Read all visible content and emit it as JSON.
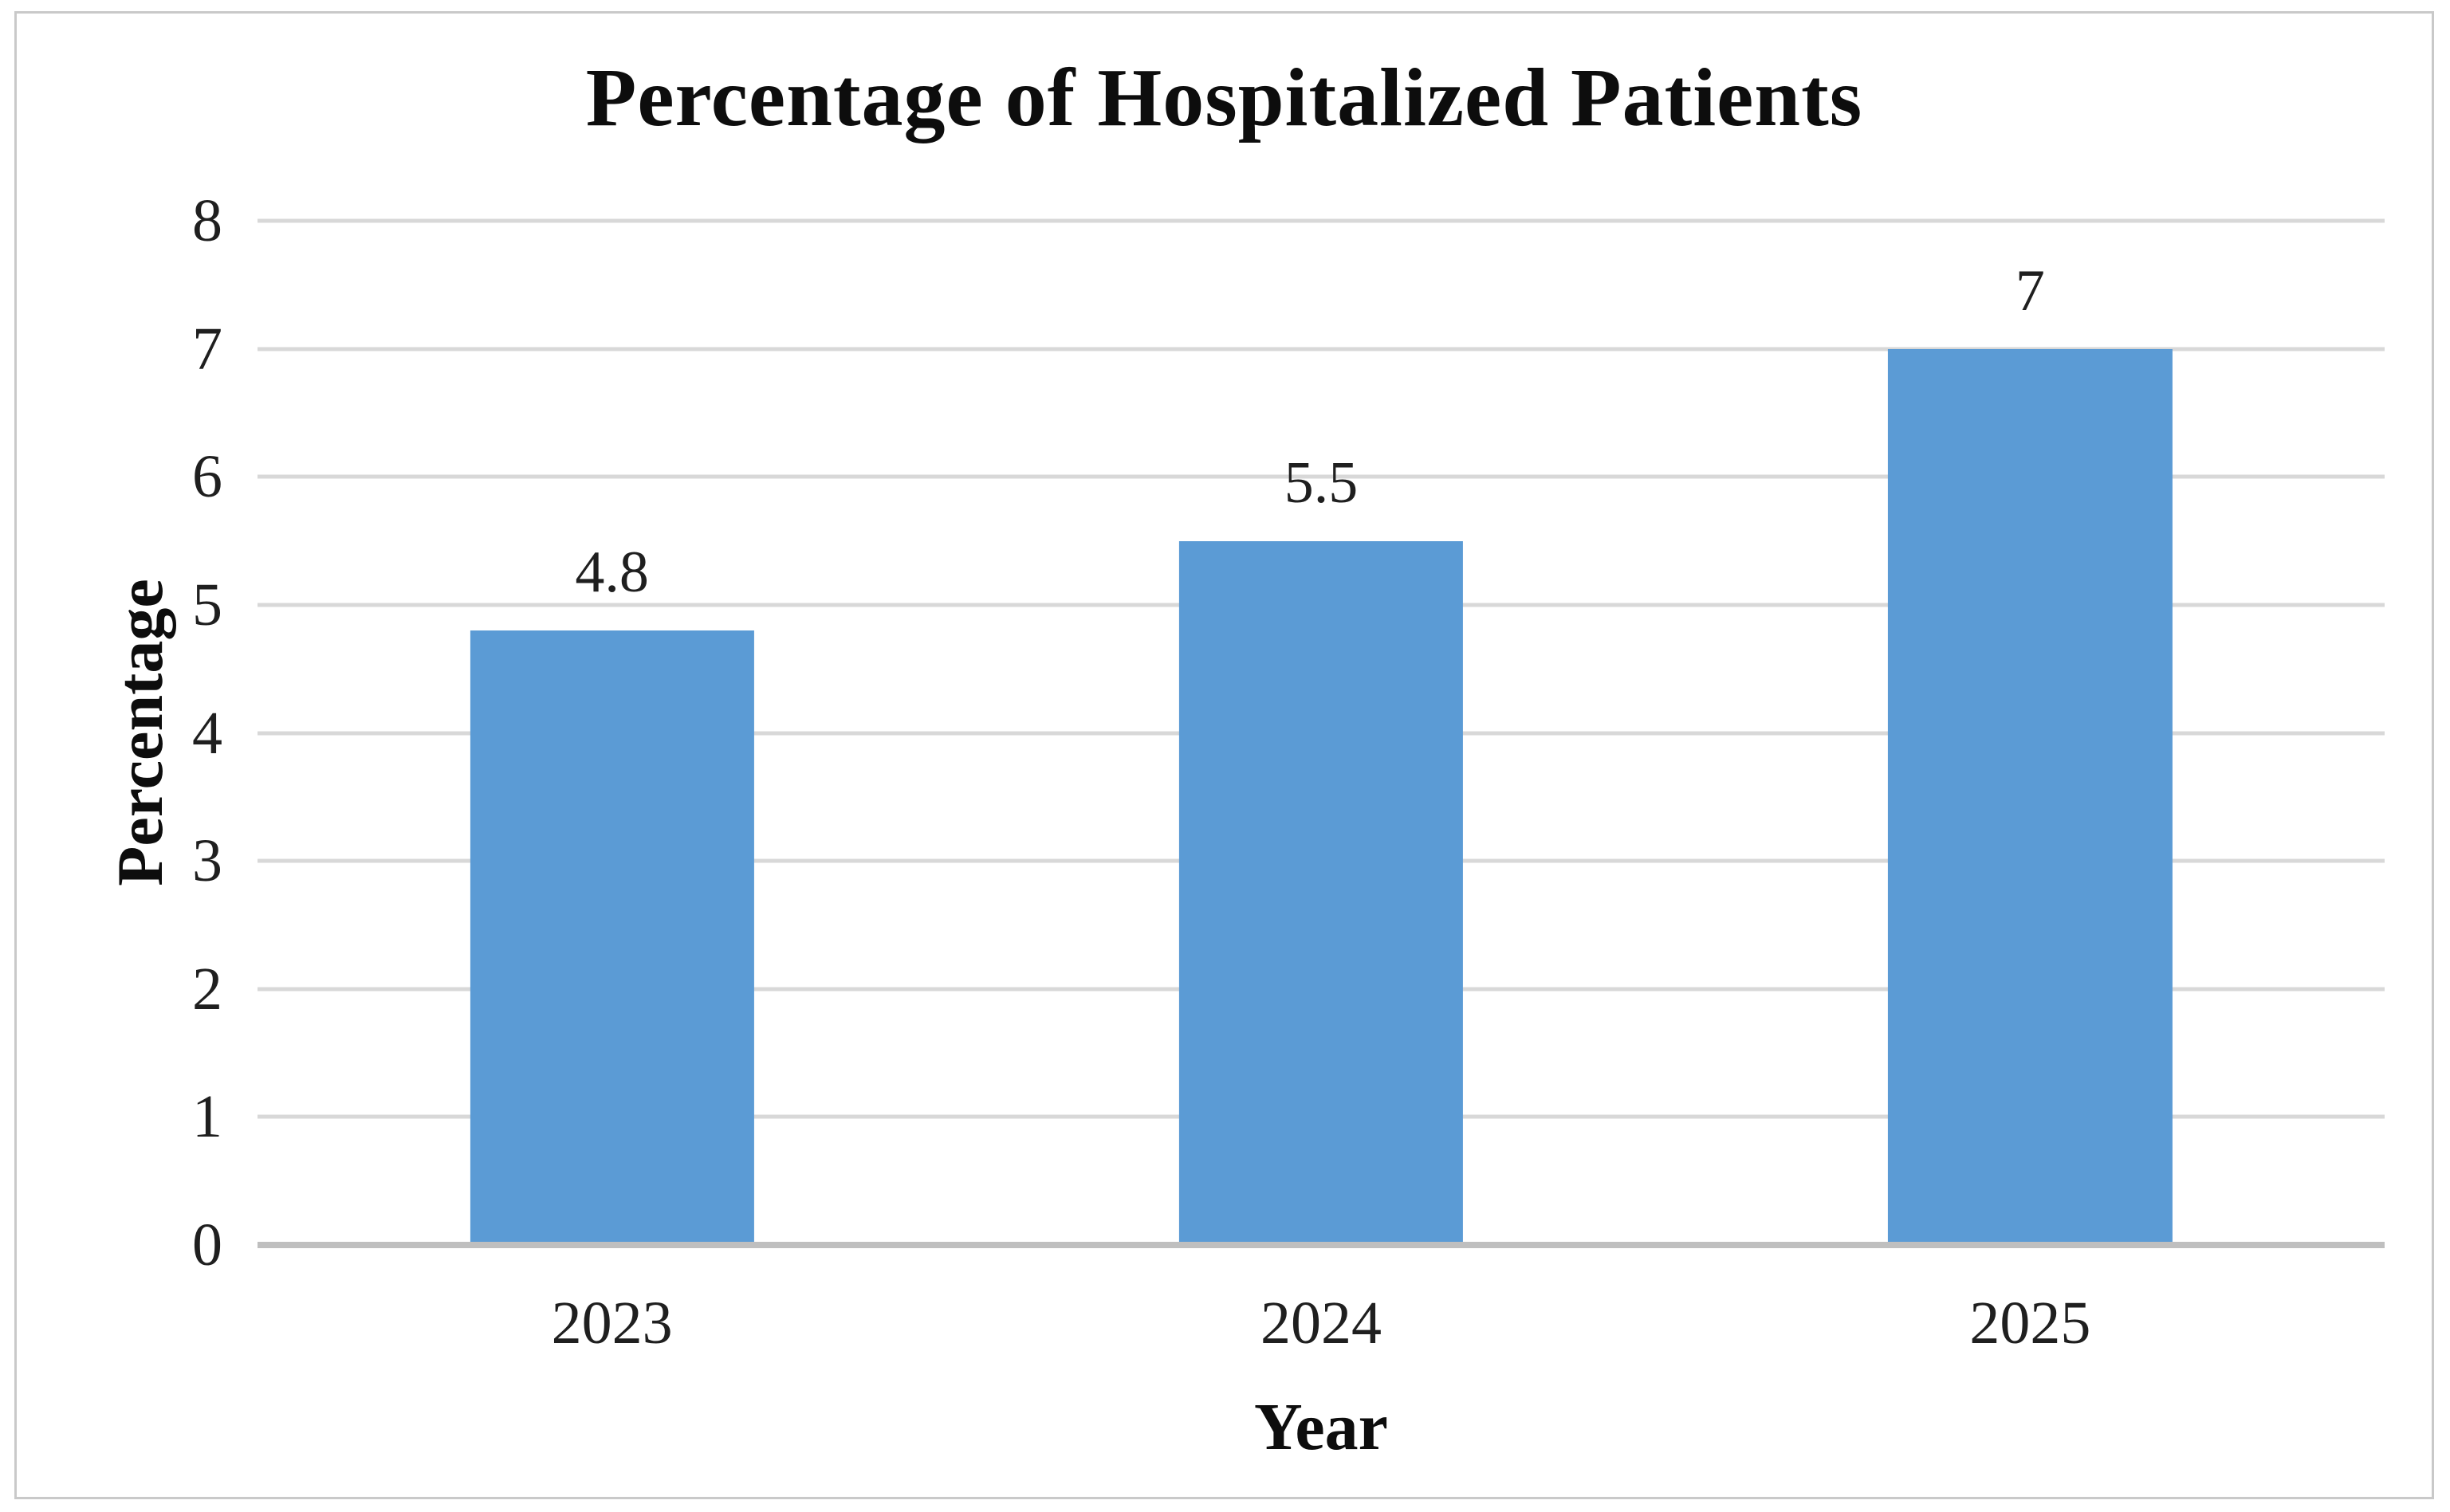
{
  "chart_data": {
    "type": "bar",
    "title": "Percentage of Hospitalized Patients",
    "xlabel": "Year",
    "ylabel": "Percentage",
    "categories": [
      "2023",
      "2024",
      "2025"
    ],
    "values": [
      4.8,
      5.5,
      7
    ],
    "data_labels": [
      "4.8",
      "5.5",
      "7"
    ],
    "ylim": [
      0,
      8
    ],
    "yticks": [
      0,
      1,
      2,
      3,
      4,
      5,
      6,
      7,
      8
    ],
    "grid": true,
    "legend_position": "none",
    "bar_color": "#5b9bd5",
    "gridline_color": "#d8d8d8",
    "axis_line_color": "#bfbfbf",
    "title_color": "#0d0d0d",
    "tick_label_color": "#1f1f1f"
  }
}
